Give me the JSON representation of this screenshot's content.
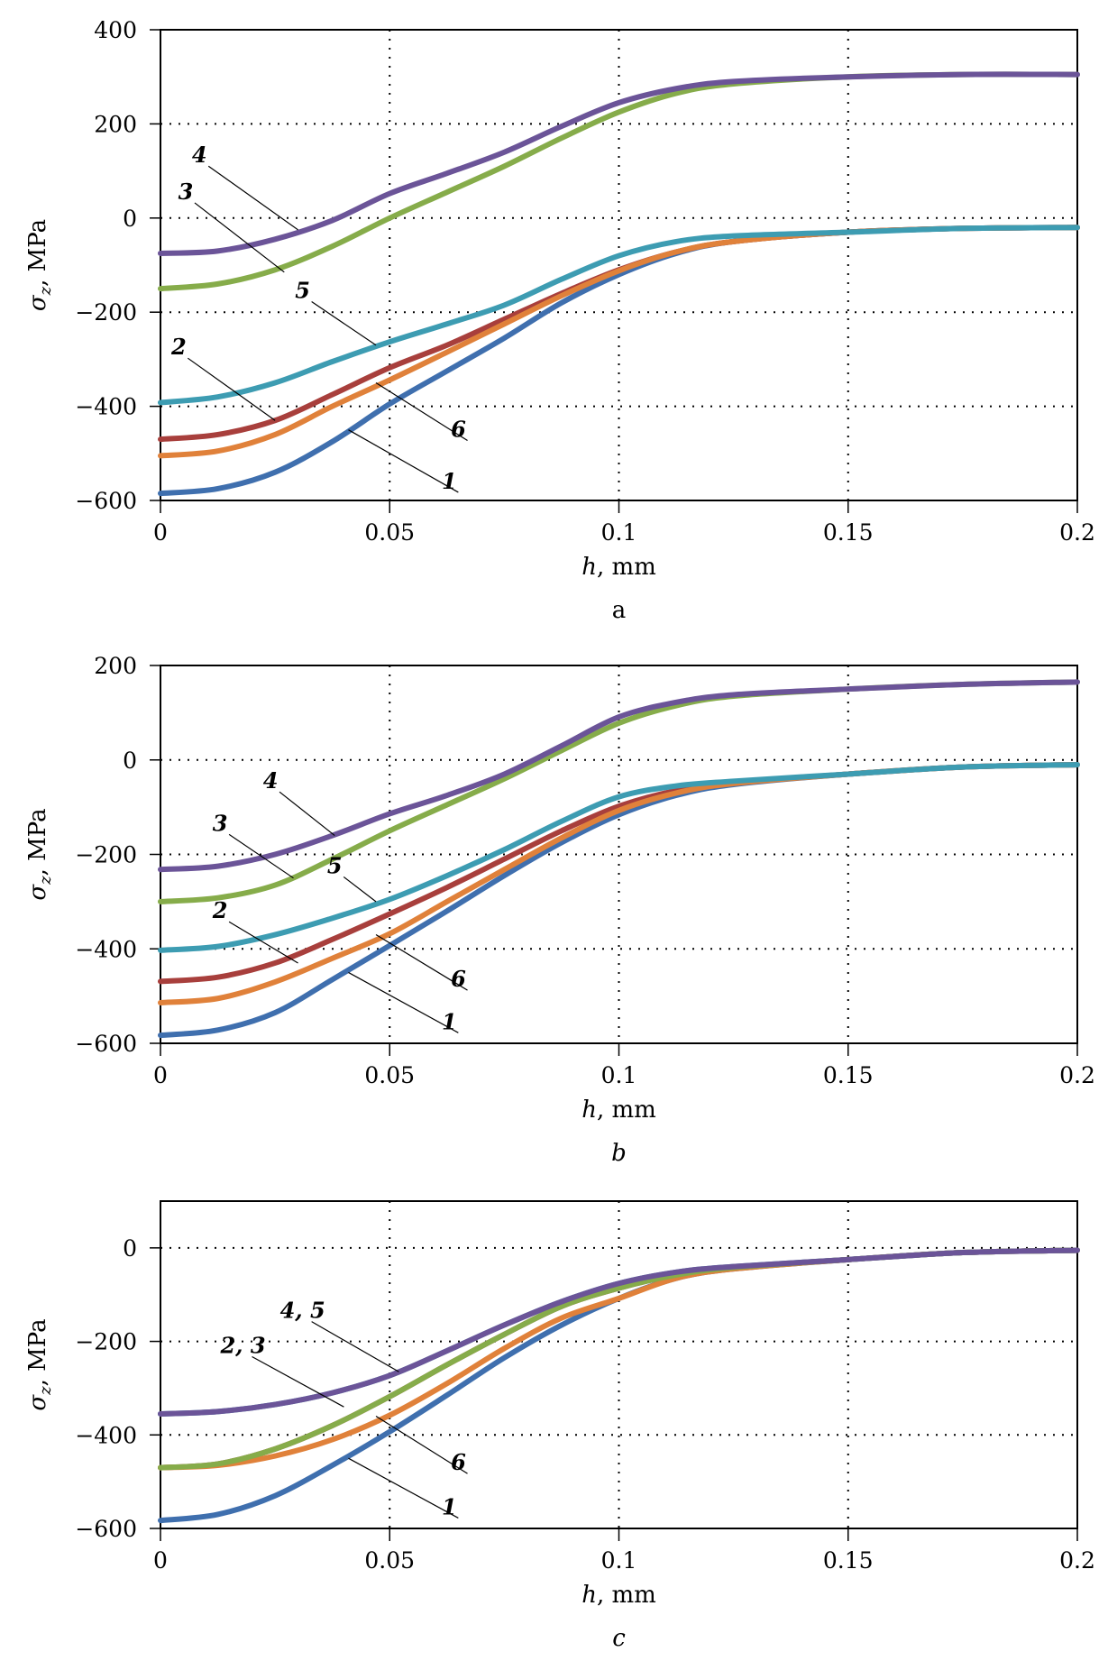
{
  "figure": {
    "panels": [
      "a",
      "b",
      "c"
    ]
  },
  "series_colors": {
    "1": "#3f6fae",
    "2": "#a83f3c",
    "3": "#86ac4a",
    "4": "#6b5498",
    "5": "#3d9cb2",
    "6": "#e0813a"
  },
  "chart_data": [
    {
      "type": "line",
      "panel": "a",
      "caption": "a",
      "title": "",
      "xlabel_italic": "h",
      "xlabel_rest": ", mm",
      "ylabel_symbol": "σ",
      "ylabel_sub": "z",
      "ylabel_rest": ", MPa",
      "xlim": [
        0,
        0.2
      ],
      "ylim": [
        -600,
        400
      ],
      "xticks": [
        0,
        0.05,
        0.1,
        0.15,
        0.2
      ],
      "xtick_labels": [
        "0",
        "0.05",
        "0.1",
        "0.15",
        "0.2"
      ],
      "yticks": [
        -600,
        -400,
        -200,
        0,
        200,
        400
      ],
      "ytick_labels": [
        "−600",
        "−400",
        "−200",
        "0",
        "200",
        "400"
      ],
      "grid": true,
      "x": [
        0,
        0.0125,
        0.025,
        0.0375,
        0.05,
        0.0625,
        0.075,
        0.0875,
        0.1,
        0.1125,
        0.125,
        0.15,
        0.175,
        0.2
      ],
      "series": [
        {
          "name": "1",
          "values": [
            -585,
            -575,
            -540,
            -475,
            -395,
            -325,
            -255,
            -180,
            -120,
            -75,
            -50,
            -30,
            -22,
            -20
          ]
        },
        {
          "name": "2",
          "values": [
            -470,
            -460,
            -430,
            -375,
            -318,
            -270,
            -215,
            -160,
            -110,
            -72,
            -50,
            -30,
            -22,
            -20
          ]
        },
        {
          "name": "3",
          "values": [
            -150,
            -140,
            -110,
            -60,
            0,
            55,
            110,
            170,
            225,
            265,
            285,
            300,
            305,
            305
          ]
        },
        {
          "name": "4",
          "values": [
            -75,
            -70,
            -45,
            -5,
            52,
            95,
            140,
            195,
            245,
            275,
            290,
            300,
            305,
            305
          ]
        },
        {
          "name": "5",
          "values": [
            -392,
            -380,
            -350,
            -305,
            -263,
            -225,
            -185,
            -130,
            -80,
            -50,
            -38,
            -30,
            -22,
            -20
          ]
        },
        {
          "name": "6",
          "values": [
            -505,
            -495,
            -460,
            -400,
            -344,
            -285,
            -225,
            -165,
            -112,
            -72,
            -50,
            -30,
            -22,
            -20
          ]
        }
      ],
      "annotations": [
        {
          "text": "4",
          "text_at": [
            0.0085,
            118
          ],
          "point": [
            0.03,
            -25
          ]
        },
        {
          "text": "3",
          "text_at": [
            0.0055,
            40
          ],
          "point": [
            0.027,
            -115
          ]
        },
        {
          "text": "5",
          "text_at": [
            0.031,
            -170
          ],
          "point": [
            0.047,
            -270
          ]
        },
        {
          "text": "2",
          "text_at": [
            0.004,
            -290
          ],
          "point": [
            0.025,
            -430
          ]
        },
        {
          "text": "6",
          "text_at": [
            0.065,
            -465
          ],
          "point": [
            0.047,
            -350
          ]
        },
        {
          "text": "1",
          "text_at": [
            0.063,
            -575
          ],
          "point": [
            0.041,
            -450
          ]
        }
      ]
    },
    {
      "type": "line",
      "panel": "b",
      "caption": "b",
      "title": "",
      "xlabel_italic": "h",
      "xlabel_rest": ", mm",
      "ylabel_symbol": "σ",
      "ylabel_sub": "z",
      "ylabel_rest": ", MPa",
      "xlim": [
        0,
        0.2
      ],
      "ylim": [
        -600,
        200
      ],
      "xticks": [
        0,
        0.05,
        0.1,
        0.15,
        0.2
      ],
      "xtick_labels": [
        "0",
        "0.05",
        "0.1",
        "0.15",
        "0.2"
      ],
      "yticks": [
        -600,
        -400,
        -200,
        0,
        200
      ],
      "ytick_labels": [
        "−600",
        "−400",
        "−200",
        "0",
        "200"
      ],
      "grid": true,
      "x": [
        0,
        0.0125,
        0.025,
        0.0375,
        0.05,
        0.0625,
        0.075,
        0.0875,
        0.1,
        0.1125,
        0.125,
        0.15,
        0.175,
        0.2
      ],
      "series": [
        {
          "name": "1",
          "values": [
            -583,
            -572,
            -535,
            -465,
            -393,
            -320,
            -245,
            -175,
            -116,
            -75,
            -52,
            -30,
            -15,
            -10
          ]
        },
        {
          "name": "2",
          "values": [
            -469,
            -460,
            -430,
            -380,
            -326,
            -270,
            -210,
            -150,
            -98,
            -65,
            -48,
            -30,
            -15,
            -10
          ]
        },
        {
          "name": "3",
          "values": [
            -300,
            -292,
            -265,
            -210,
            -150,
            -95,
            -40,
            20,
            78,
            115,
            135,
            150,
            160,
            165
          ]
        },
        {
          "name": "4",
          "values": [
            -232,
            -225,
            -200,
            -160,
            -114,
            -75,
            -30,
            30,
            91,
            122,
            138,
            150,
            160,
            165
          ]
        },
        {
          "name": "5",
          "values": [
            -403,
            -395,
            -370,
            -335,
            -295,
            -245,
            -190,
            -130,
            -78,
            -55,
            -45,
            -30,
            -15,
            -10
          ]
        },
        {
          "name": "6",
          "values": [
            -514,
            -505,
            -470,
            -420,
            -368,
            -300,
            -232,
            -165,
            -107,
            -70,
            -50,
            -30,
            -15,
            -10
          ]
        }
      ],
      "annotations": [
        {
          "text": "4",
          "text_at": [
            0.024,
            -60
          ],
          "point": [
            0.038,
            -160
          ]
        },
        {
          "text": "3",
          "text_at": [
            0.013,
            -150
          ],
          "point": [
            0.029,
            -250
          ]
        },
        {
          "text": "5",
          "text_at": [
            0.038,
            -240
          ],
          "point": [
            0.047,
            -300
          ]
        },
        {
          "text": "2",
          "text_at": [
            0.013,
            -335
          ],
          "point": [
            0.03,
            -430
          ]
        },
        {
          "text": "6",
          "text_at": [
            0.065,
            -480
          ],
          "point": [
            0.047,
            -370
          ]
        },
        {
          "text": "1",
          "text_at": [
            0.063,
            -570
          ],
          "point": [
            0.041,
            -450
          ]
        }
      ]
    },
    {
      "type": "line",
      "panel": "c",
      "caption": "c",
      "title": "",
      "xlabel_italic": "h",
      "xlabel_rest": ", mm",
      "ylabel_symbol": "σ",
      "ylabel_sub": "z",
      "ylabel_rest": ", MPa",
      "xlim": [
        0,
        0.2
      ],
      "ylim": [
        -600,
        100
      ],
      "xticks": [
        0,
        0.05,
        0.1,
        0.15,
        0.2
      ],
      "xtick_labels": [
        "0",
        "0.05",
        "0.1",
        "0.15",
        "0.2"
      ],
      "yticks": [
        -600,
        -400,
        -200,
        0
      ],
      "ytick_labels": [
        "−600",
        "−400",
        "−200",
        "0"
      ],
      "grid": true,
      "x": [
        0,
        0.0125,
        0.025,
        0.0375,
        0.05,
        0.0625,
        0.075,
        0.0875,
        0.1,
        0.1125,
        0.125,
        0.15,
        0.175,
        0.2
      ],
      "series": [
        {
          "name": "1",
          "values": [
            -583,
            -570,
            -530,
            -465,
            -393,
            -315,
            -235,
            -165,
            -108,
            -65,
            -45,
            -25,
            -10,
            -5
          ]
        },
        {
          "name": "2",
          "values": [
            -470,
            -462,
            -430,
            -380,
            -318,
            -250,
            -185,
            -125,
            -86,
            -58,
            -42,
            -25,
            -10,
            -5
          ]
        },
        {
          "name": "3",
          "values": [
            -470,
            -462,
            -430,
            -380,
            -318,
            -250,
            -185,
            -125,
            -86,
            -58,
            -42,
            -25,
            -10,
            -5
          ]
        },
        {
          "name": "4",
          "values": [
            -355,
            -350,
            -335,
            -310,
            -273,
            -220,
            -165,
            -115,
            -76,
            -52,
            -40,
            -25,
            -10,
            -5
          ]
        },
        {
          "name": "5",
          "values": [
            -355,
            -350,
            -335,
            -310,
            -273,
            -220,
            -165,
            -115,
            -76,
            -52,
            -40,
            -25,
            -10,
            -5
          ]
        },
        {
          "name": "6",
          "values": [
            -470,
            -465,
            -445,
            -410,
            -358,
            -290,
            -215,
            -150,
            -108,
            -65,
            -45,
            -25,
            -10,
            -5
          ]
        }
      ],
      "annotations": [
        {
          "text": "4, 5",
          "text_at": [
            0.031,
            -150
          ],
          "point": [
            0.052,
            -265
          ]
        },
        {
          "text": "2, 3",
          "text_at": [
            0.018,
            -225
          ],
          "point": [
            0.04,
            -340
          ]
        },
        {
          "text": "6",
          "text_at": [
            0.065,
            -475
          ],
          "point": [
            0.047,
            -360
          ]
        },
        {
          "text": "1",
          "text_at": [
            0.063,
            -570
          ],
          "point": [
            0.041,
            -450
          ]
        }
      ]
    }
  ]
}
